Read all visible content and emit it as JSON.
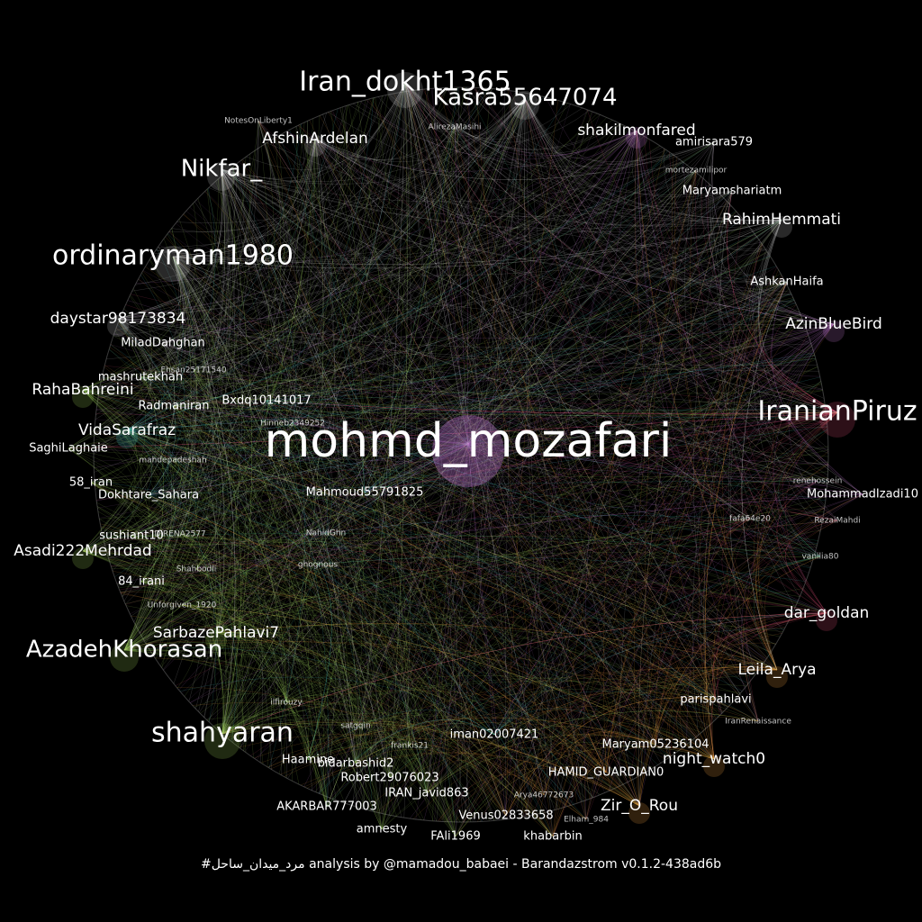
{
  "caption": "#مرد_میدان_ساحل analysis by @mamadou_babaei - Barandazstrom v0.1.2-438ad6b",
  "colors": {
    "background": "#000000",
    "purple": "#c77fd9",
    "pink": "#e0507a",
    "green": "#9fd35a",
    "cyan": "#4fd3d0",
    "orange": "#f0a040",
    "teal": "#3fd09a",
    "gray": "#cfcfcf"
  },
  "nodes": [
    {
      "label": "mohmd_mozafari",
      "weight": 10,
      "color": "purple"
    },
    {
      "label": "Iran_dokht1365",
      "weight": 5,
      "color": "gray"
    },
    {
      "label": "Kasra55647074",
      "weight": 4,
      "color": "gray"
    },
    {
      "label": "IranianPiruz",
      "weight": 5,
      "color": "pink"
    },
    {
      "label": "ordinaryman1980",
      "weight": 5,
      "color": "gray"
    },
    {
      "label": "shahyaran",
      "weight": 5,
      "color": "green"
    },
    {
      "label": "AzadehKhorasan",
      "weight": 4,
      "color": "green"
    },
    {
      "label": "Nikfar_",
      "weight": 4,
      "color": "gray"
    },
    {
      "label": "SarbazePahlavi7",
      "weight": 3,
      "color": "green"
    },
    {
      "label": "Asadi222Mehrdad",
      "weight": 3,
      "color": "green"
    },
    {
      "label": "AfshinArdelan",
      "weight": 3,
      "color": "gray"
    },
    {
      "label": "shakilmonfared",
      "weight": 3,
      "color": "purple"
    },
    {
      "label": "RahimHemmati",
      "weight": 3,
      "color": "gray"
    },
    {
      "label": "AzinBlueBird",
      "weight": 3,
      "color": "purple"
    },
    {
      "label": "dar_goldan",
      "weight": 3,
      "color": "pink"
    },
    {
      "label": "night_watch0",
      "weight": 3,
      "color": "orange"
    },
    {
      "label": "Leila_Arya",
      "weight": 3,
      "color": "orange"
    },
    {
      "label": "RahaBahreini",
      "weight": 3,
      "color": "green"
    },
    {
      "label": "daystar98173834",
      "weight": 3,
      "color": "gray"
    },
    {
      "label": "VidaSarafraz",
      "weight": 3,
      "color": "cyan"
    },
    {
      "label": "Zir_O_Rou",
      "weight": 3,
      "color": "orange"
    },
    {
      "label": "AKARBAR777003",
      "weight": 2,
      "color": "green"
    },
    {
      "label": "amnesty",
      "weight": 2,
      "color": "green"
    },
    {
      "label": "FAli1969",
      "weight": 2,
      "color": "green"
    },
    {
      "label": "Venus02833658",
      "weight": 2,
      "color": "orange"
    },
    {
      "label": "khabarbin",
      "weight": 2,
      "color": "orange"
    },
    {
      "label": "Maryam05236104",
      "weight": 2,
      "color": "orange"
    },
    {
      "label": "parispahlavi",
      "weight": 2,
      "color": "orange"
    },
    {
      "label": "MohammadIzadi10",
      "weight": 2,
      "color": "purple"
    },
    {
      "label": "amirisara579",
      "weight": 2,
      "color": "gray"
    },
    {
      "label": "Maryamshariatm",
      "weight": 2,
      "color": "gray"
    },
    {
      "label": "AshkanHaifa",
      "weight": 2,
      "color": "gray"
    },
    {
      "label": "58_iran",
      "weight": 2,
      "color": "green"
    },
    {
      "label": "Dokhtare_Sahara",
      "weight": 2,
      "color": "cyan"
    },
    {
      "label": "Mahmoud55791825",
      "weight": 2,
      "color": "cyan"
    },
    {
      "label": "sushiant10",
      "weight": 2,
      "color": "green"
    },
    {
      "label": "84_irani",
      "weight": 2,
      "color": "green"
    },
    {
      "label": "mashrutekhah",
      "weight": 2,
      "color": "green"
    },
    {
      "label": "Bxdq10141017",
      "weight": 2,
      "color": "cyan"
    },
    {
      "label": "MiladDahghan",
      "weight": 2,
      "color": "gray"
    },
    {
      "label": "SaghiLaghaie",
      "weight": 2,
      "color": "green"
    },
    {
      "label": "Radmaniran",
      "weight": 2,
      "color": "green"
    },
    {
      "label": "Robert29076023",
      "weight": 2,
      "color": "green"
    },
    {
      "label": "Haamine",
      "weight": 2,
      "color": "green"
    },
    {
      "label": "bidarbashid2",
      "weight": 2,
      "color": "green"
    },
    {
      "label": "IRAN_javid863",
      "weight": 2,
      "color": "green"
    },
    {
      "label": "iman02007421",
      "weight": 2,
      "color": "cyan"
    },
    {
      "label": "HAMID_GUARDIAN0",
      "weight": 2,
      "color": "orange"
    },
    {
      "label": "Elham_984",
      "weight": 1,
      "color": "orange"
    },
    {
      "label": "IranRenaissance",
      "weight": 1,
      "color": "orange"
    },
    {
      "label": "vanilia80",
      "weight": 1,
      "color": "teal"
    },
    {
      "label": "fafa64e20",
      "weight": 1,
      "color": "pink"
    },
    {
      "label": "NotesOnLiberty1",
      "weight": 1,
      "color": "gray"
    },
    {
      "label": "ghognous",
      "weight": 1,
      "color": "cyan"
    },
    {
      "label": "NahidGhn",
      "weight": 1,
      "color": "cyan"
    },
    {
      "label": "Unforgiven_1920",
      "weight": 1,
      "color": "green"
    },
    {
      "label": "ilfirouzy",
      "weight": 1,
      "color": "green"
    },
    {
      "label": "satgqin",
      "weight": 1,
      "color": "green"
    },
    {
      "label": "frankis21",
      "weight": 1,
      "color": "green"
    },
    {
      "label": "AlirezaMasihi",
      "weight": 1,
      "color": "gray"
    },
    {
      "label": "mortezamilipor",
      "weight": 1,
      "color": "gray"
    },
    {
      "label": "renehossein",
      "weight": 1,
      "color": "purple"
    },
    {
      "label": "RezaiMahdi",
      "weight": 1,
      "color": "pink"
    },
    {
      "label": "Arya46772673",
      "weight": 1,
      "color": "orange"
    },
    {
      "label": "Ehsan25171540",
      "weight": 1,
      "color": "green"
    },
    {
      "label": "mahdepadeshah",
      "weight": 1,
      "color": "green"
    },
    {
      "label": "Hinneb2349252",
      "weight": 1,
      "color": "cyan"
    },
    {
      "label": "DIRENA2577",
      "weight": 1,
      "color": "green"
    },
    {
      "label": "Shahbodli",
      "weight": 1,
      "color": "green"
    }
  ]
}
